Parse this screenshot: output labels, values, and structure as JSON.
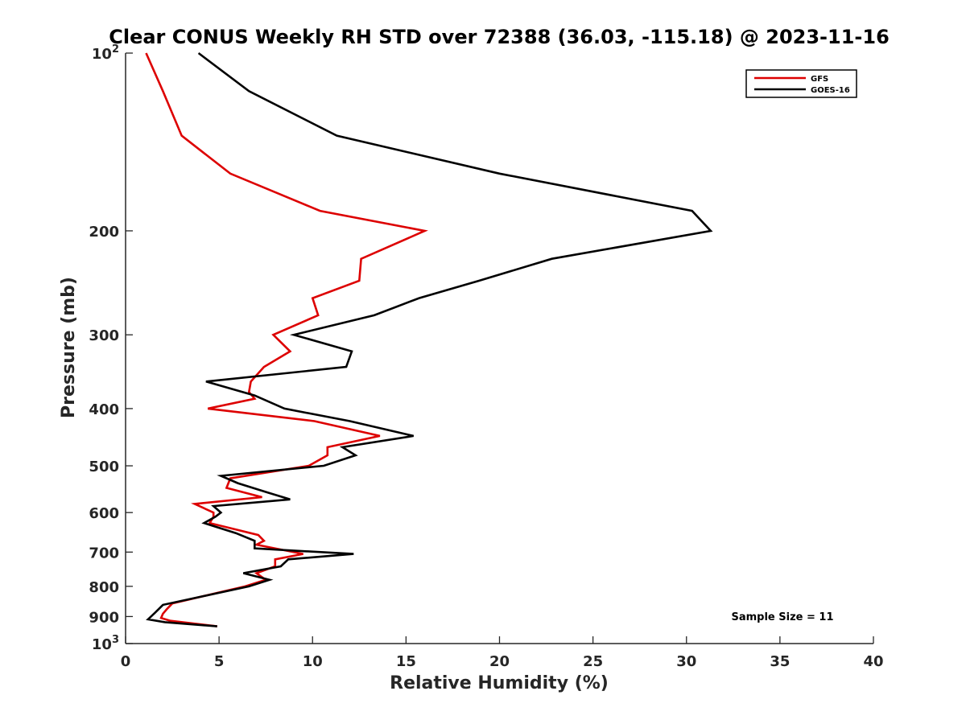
{
  "chart_data": {
    "type": "line",
    "title": "Clear CONUS Weekly RH STD over 72388 (36.03, -115.18) @ 2023-11-16",
    "xlabel": "Relative Humidity (%)",
    "ylabel": "Pressure (mb)",
    "xlim": [
      0,
      40
    ],
    "ylim": [
      100,
      1000
    ],
    "yscale": "log",
    "y_reversed": true,
    "grid": false,
    "legend_position": "top-right",
    "x_ticks": [
      "0",
      "5",
      "10",
      "15",
      "20",
      "25",
      "30",
      "35",
      "40"
    ],
    "y_ticks": [
      {
        "value": 100,
        "base": "10",
        "exp": "2"
      },
      {
        "value": 200,
        "base": "200",
        "exp": ""
      },
      {
        "value": 300,
        "base": "300",
        "exp": ""
      },
      {
        "value": 400,
        "base": "400",
        "exp": ""
      },
      {
        "value": 500,
        "base": "500",
        "exp": ""
      },
      {
        "value": 600,
        "base": "600",
        "exp": ""
      },
      {
        "value": 700,
        "base": "700",
        "exp": ""
      },
      {
        "value": 800,
        "base": "800",
        "exp": ""
      },
      {
        "value": 900,
        "base": "900",
        "exp": ""
      },
      {
        "value": 1000,
        "base": "10",
        "exp": "3"
      }
    ],
    "annotation": "Sample Size = 11",
    "series": [
      {
        "name": "GFS",
        "color": "#dd0000",
        "points": [
          [
            1.1,
            100
          ],
          [
            2.0,
            116
          ],
          [
            3.0,
            138
          ],
          [
            5.6,
            160
          ],
          [
            10.4,
            185
          ],
          [
            16.0,
            200
          ],
          [
            12.6,
            223
          ],
          [
            12.5,
            243
          ],
          [
            10.0,
            260
          ],
          [
            10.3,
            278
          ],
          [
            7.9,
            300
          ],
          [
            8.8,
            320
          ],
          [
            7.4,
            340
          ],
          [
            6.7,
            360
          ],
          [
            6.6,
            375
          ],
          [
            6.9,
            385
          ],
          [
            4.4,
            400
          ],
          [
            10.1,
            420
          ],
          [
            13.6,
            445
          ],
          [
            10.8,
            465
          ],
          [
            10.8,
            480
          ],
          [
            9.8,
            500
          ],
          [
            5.6,
            525
          ],
          [
            5.4,
            545
          ],
          [
            7.3,
            565
          ],
          [
            3.7,
            580
          ],
          [
            4.7,
            600
          ],
          [
            4.7,
            610
          ],
          [
            4.5,
            625
          ],
          [
            7.1,
            655
          ],
          [
            7.4,
            670
          ],
          [
            7.0,
            680
          ],
          [
            9.5,
            705
          ],
          [
            8.0,
            720
          ],
          [
            8.0,
            740
          ],
          [
            7.0,
            760
          ],
          [
            7.5,
            780
          ],
          [
            6.4,
            800
          ],
          [
            2.5,
            855
          ],
          [
            2.2,
            875
          ],
          [
            2.0,
            890
          ],
          [
            1.9,
            905
          ],
          [
            2.4,
            915
          ],
          [
            4.9,
            935
          ]
        ]
      },
      {
        "name": "GOES-16",
        "color": "#000000",
        "points": [
          [
            3.9,
            100
          ],
          [
            6.6,
            116
          ],
          [
            11.3,
            138
          ],
          [
            20.0,
            160
          ],
          [
            30.3,
            185
          ],
          [
            31.3,
            200
          ],
          [
            22.8,
            223
          ],
          [
            18.9,
            243
          ],
          [
            15.7,
            260
          ],
          [
            13.3,
            278
          ],
          [
            9.0,
            300
          ],
          [
            12.1,
            320
          ],
          [
            11.8,
            340
          ],
          [
            4.3,
            360
          ],
          [
            6.9,
            380
          ],
          [
            8.5,
            400
          ],
          [
            12.0,
            420
          ],
          [
            15.4,
            445
          ],
          [
            11.6,
            465
          ],
          [
            12.3,
            480
          ],
          [
            10.6,
            500
          ],
          [
            5.1,
            520
          ],
          [
            6.0,
            535
          ],
          [
            7.6,
            555
          ],
          [
            8.8,
            570
          ],
          [
            4.7,
            585
          ],
          [
            5.1,
            600
          ],
          [
            4.8,
            610
          ],
          [
            4.2,
            625
          ],
          [
            5.9,
            650
          ],
          [
            6.9,
            670
          ],
          [
            6.9,
            690
          ],
          [
            12.2,
            705
          ],
          [
            8.7,
            720
          ],
          [
            8.3,
            740
          ],
          [
            6.3,
            760
          ],
          [
            7.7,
            780
          ],
          [
            6.6,
            800
          ],
          [
            2.0,
            860
          ],
          [
            1.6,
            885
          ],
          [
            1.2,
            910
          ],
          [
            2.1,
            920
          ],
          [
            4.9,
            935
          ]
        ]
      }
    ]
  }
}
